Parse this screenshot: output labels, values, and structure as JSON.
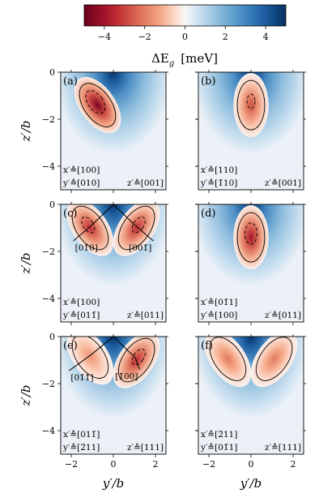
{
  "chart_data": {
    "type": "heatmap",
    "colorbar": {
      "label": "ΔE",
      "label_sub": "g",
      "unit": "[meV]",
      "range": [
        -5,
        5
      ],
      "ticks": [
        "−4",
        "−2",
        "0",
        "2",
        "4"
      ],
      "tick_values": [
        -4,
        -2,
        0,
        2,
        4
      ],
      "colormap": "RdBu"
    },
    "xlabel": "y′/b",
    "ylabel": "z′/b",
    "xlim": [
      -2.5,
      2.5
    ],
    "ylim": [
      -5,
      0
    ],
    "xticks": [
      "−2",
      "0",
      "2"
    ],
    "xtick_values": [
      -2,
      0,
      2
    ],
    "yticks": [
      "0",
      "−2",
      "−4"
    ],
    "ytick_values": [
      0,
      -2,
      -4
    ],
    "panels": [
      {
        "label": "(a)",
        "x_axis": "x′≙[100]",
        "y_axis": "y′≙[010]",
        "z_axis": "z′≙[001]",
        "lobes": [
          {
            "cx": -0.75,
            "cz": -1.4,
            "peak": -4.8
          }
        ],
        "arrows": []
      },
      {
        "label": "(b)",
        "x_axis": "x′≙[110]",
        "y_axis": "y′≙[1̄10]",
        "z_axis": "z′≙[001]",
        "lobes": [
          {
            "cx": 0.0,
            "cz": -1.4,
            "peak": -2.8
          }
        ],
        "arrows": []
      },
      {
        "label": "(c)",
        "x_axis": "x′≙[100]",
        "y_axis": "y′≙[011̄]",
        "z_axis": "z′≙[011]",
        "lobes": [
          {
            "cx": -1.1,
            "cz": -1.0,
            "peak": -3.4
          },
          {
            "cx": 1.1,
            "cz": -1.0,
            "peak": -3.4
          }
        ],
        "arrows": [
          "[01̄0]",
          "[001̄]"
        ]
      },
      {
        "label": "(d)",
        "x_axis": "x′≙[01̄1]",
        "y_axis": "y′≙[100]",
        "z_axis": "z′≙[011]",
        "lobes": [
          {
            "cx": 0.0,
            "cz": -1.4,
            "peak": -4.0
          }
        ],
        "arrows": []
      },
      {
        "label": "(e)",
        "x_axis": "x′≙[011̄]",
        "y_axis": "y′≙[2̄11]",
        "z_axis": "z′≙[111]",
        "lobes": [
          {
            "cx": -1.1,
            "cz": -0.85,
            "peak": -1.6
          },
          {
            "cx": 1.1,
            "cz": -1.0,
            "peak": -3.4
          }
        ],
        "arrows": [
          "[01̄1̄]",
          "[1̄00]"
        ]
      },
      {
        "label": "(f)",
        "x_axis": "x′≙[2̄11]",
        "y_axis": "y′≙[01̄1]",
        "z_axis": "z′≙[111]",
        "lobes": [
          {
            "cx": -1.1,
            "cz": -0.95,
            "peak": -2.0
          },
          {
            "cx": 1.1,
            "cz": -0.95,
            "peak": -2.0
          }
        ],
        "arrows": []
      }
    ]
  }
}
